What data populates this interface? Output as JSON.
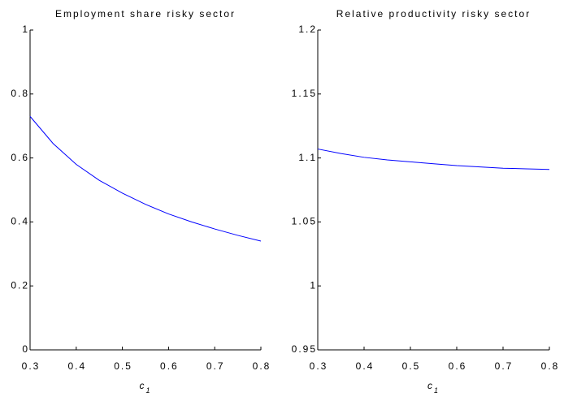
{
  "chart_data": [
    {
      "type": "line",
      "title": "Employment share risky sector",
      "xlabel": "c",
      "xlabel_subscript": "1",
      "x": [
        0.3,
        0.35,
        0.4,
        0.45,
        0.5,
        0.55,
        0.6,
        0.65,
        0.7,
        0.75,
        0.8
      ],
      "series": [
        {
          "color": "#0000ff",
          "values": [
            0.73,
            0.645,
            0.58,
            0.53,
            0.49,
            0.455,
            0.425,
            0.4,
            0.378,
            0.358,
            0.34
          ]
        }
      ],
      "xlim": [
        0.3,
        0.8
      ],
      "xticks": [
        0.3,
        0.4,
        0.5,
        0.6,
        0.7,
        0.8
      ],
      "ylim": [
        0,
        1
      ],
      "yticks": [
        0,
        0.2,
        0.4,
        0.6,
        0.8,
        1
      ]
    },
    {
      "type": "line",
      "title": "Relative productivity risky sector",
      "xlabel": "c",
      "xlabel_subscript": "1",
      "x": [
        0.3,
        0.35,
        0.4,
        0.45,
        0.5,
        0.55,
        0.6,
        0.65,
        0.7,
        0.75,
        0.8
      ],
      "series": [
        {
          "color": "#0000ff",
          "values": [
            1.107,
            1.1035,
            1.1005,
            1.0985,
            1.097,
            1.0955,
            1.094,
            1.093,
            1.092,
            1.0915,
            1.091
          ]
        }
      ],
      "xlim": [
        0.3,
        0.8
      ],
      "xticks": [
        0.3,
        0.4,
        0.5,
        0.6,
        0.7,
        0.8
      ],
      "ylim": [
        0.95,
        1.2
      ],
      "yticks": [
        0.95,
        1,
        1.05,
        1.1,
        1.15,
        1.2
      ]
    }
  ]
}
